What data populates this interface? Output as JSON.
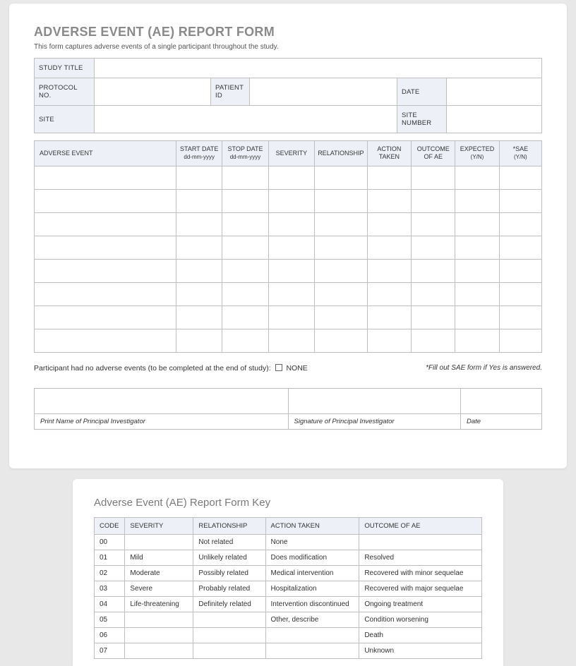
{
  "title": "ADVERSE EVENT (AE) REPORT FORM",
  "subtitle": "This form captures adverse events of a single participant throughout the study.",
  "info": {
    "studyTitle": "STUDY TITLE",
    "protocolNo": "PROTOCOL NO.",
    "patientId": "PATIENT ID",
    "date": "DATE",
    "site": "SITE",
    "siteNumber": "SITE NUMBER"
  },
  "aeHeaders": {
    "adverseEvent": "ADVERSE EVENT",
    "startDate": "START DATE",
    "startDateSub": "dd-mm-yyyy",
    "stopDate": "STOP DATE",
    "stopDateSub": "dd-mm-yyyy",
    "severity": "SEVERITY",
    "relationship": "RELATIONSHIP",
    "actionTaken": "ACTION TAKEN",
    "outcome": "OUTCOME OF AE",
    "expected": "EXPECTED",
    "expectedSub": "(Y/N)",
    "sae": "*SAE",
    "saeSub": "(Y/N)"
  },
  "colWidths": {
    "adverseEvent": "200px",
    "startDate": "65px",
    "stopDate": "65px",
    "severity": "65px",
    "relationship": "70px",
    "actionTaken": "62px",
    "outcome": "62px",
    "expected": "62px",
    "sae": "60px"
  },
  "aeRowCount": 8,
  "footer": {
    "noneText": "Participant had no adverse events (to be completed at the end of study):",
    "noneLabel": "NONE",
    "saeNote": "*Fill out SAE form if Yes is answered."
  },
  "sig": {
    "printName": "Print Name of Principal Investigator",
    "signature": "Signature of Principal Investigator",
    "date": "Date"
  },
  "keyTitle": "Adverse Event (AE) Report Form Key",
  "keyHeaders": {
    "code": "CODE",
    "severity": "SEVERITY",
    "relationship": "RELATIONSHIP",
    "actionTaken": "ACTION TAKEN",
    "outcome": "OUTCOME OF AE"
  },
  "keyWidths": {
    "code": "40px",
    "severity": "95px",
    "relationship": "100px",
    "actionTaken": "130px",
    "outcome": "170px"
  },
  "keyRows": [
    {
      "code": "00",
      "severity": "",
      "relationship": "Not related",
      "action": "None",
      "outcome": ""
    },
    {
      "code": "01",
      "severity": "Mild",
      "relationship": "Unlikely related",
      "action": "Does modification",
      "outcome": "Resolved"
    },
    {
      "code": "02",
      "severity": "Moderate",
      "relationship": "Possibly related",
      "action": "Medical intervention",
      "outcome": "Recovered with minor sequelae"
    },
    {
      "code": "03",
      "severity": "Severe",
      "relationship": "Probably related",
      "action": "Hospitalization",
      "outcome": "Recovered with major sequelae"
    },
    {
      "code": "04",
      "severity": "Life-threatening",
      "relationship": "Definitely related",
      "action": "Intervention discontinued",
      "outcome": "Ongoing treatment"
    },
    {
      "code": "05",
      "severity": "",
      "relationship": "",
      "action": "Other, describe",
      "outcome": "Condition worsening"
    },
    {
      "code": "06",
      "severity": "",
      "relationship": "",
      "action": "",
      "outcome": "Death"
    },
    {
      "code": "07",
      "severity": "",
      "relationship": "",
      "action": "",
      "outcome": "Unknown"
    }
  ]
}
